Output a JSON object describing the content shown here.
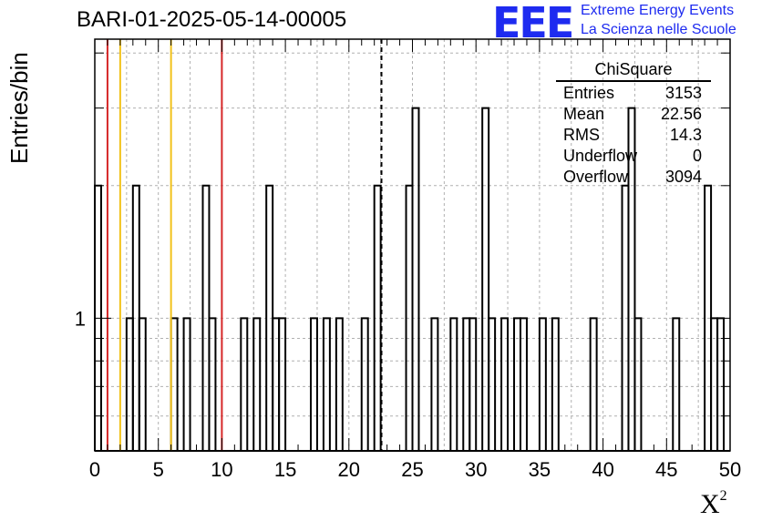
{
  "title": "BARI-01-2025-05-14-00005",
  "logo": {
    "mark": "EEE",
    "line1": "Extreme Energy Events",
    "line2": "La Scienza nelle Scuole"
  },
  "stats": {
    "title": "ChiSquare",
    "rows": [
      {
        "label": "Entries",
        "value": "3153"
      },
      {
        "label": "Mean",
        "value": "22.56"
      },
      {
        "label": "RMS",
        "value": "14.3"
      },
      {
        "label": "Underflow",
        "value": "0"
      },
      {
        "label": "Overflow",
        "value": "3094"
      }
    ]
  },
  "colors": {
    "red_line": "#d62728",
    "yellow_line": "#f2c21b",
    "grid": "#b0b0b0",
    "logo": "#1e2bf0"
  },
  "chart_data": {
    "type": "bar",
    "xlabel": "X²",
    "ylabel": "Entries/bin",
    "xlim": [
      0,
      50
    ],
    "ylim": [
      0.5,
      4.3
    ],
    "yscale": "log",
    "grid": true,
    "legend_position": "top-right",
    "x_ticks": [
      "0",
      "5",
      "10",
      "15",
      "20",
      "25",
      "30",
      "35",
      "40",
      "45",
      "50"
    ],
    "y_ticks": [
      "1"
    ],
    "bin_width": 0.5,
    "bins": [
      [
        0,
        2
      ],
      [
        2.5,
        1
      ],
      [
        3,
        2
      ],
      [
        3.5,
        1
      ],
      [
        6,
        1
      ],
      [
        7,
        1
      ],
      [
        8.5,
        2
      ],
      [
        9,
        1
      ],
      [
        11.5,
        1
      ],
      [
        12.5,
        1
      ],
      [
        13.5,
        2
      ],
      [
        14,
        1
      ],
      [
        14.5,
        1
      ],
      [
        17,
        1
      ],
      [
        18,
        1
      ],
      [
        19,
        1
      ],
      [
        21,
        1
      ],
      [
        22,
        2
      ],
      [
        24.5,
        2
      ],
      [
        25,
        3
      ],
      [
        26.5,
        1
      ],
      [
        28,
        1
      ],
      [
        29,
        1
      ],
      [
        29.5,
        1
      ],
      [
        30.5,
        3
      ],
      [
        31,
        1
      ],
      [
        32,
        1
      ],
      [
        33,
        1
      ],
      [
        33.5,
        1
      ],
      [
        35,
        1
      ],
      [
        36,
        1
      ],
      [
        39,
        1
      ],
      [
        41.5,
        2
      ],
      [
        42,
        3
      ],
      [
        42.5,
        1
      ],
      [
        45.5,
        1
      ],
      [
        48,
        2
      ],
      [
        48.5,
        1
      ],
      [
        49,
        1
      ]
    ],
    "vertical_lines": [
      {
        "x": 1,
        "color": "#d62728",
        "style": "solid"
      },
      {
        "x": 2,
        "color": "#f2c21b",
        "style": "solid"
      },
      {
        "x": 6,
        "color": "#f2c21b",
        "style": "solid"
      },
      {
        "x": 10,
        "color": "#d62728",
        "style": "solid"
      },
      {
        "x": 22.56,
        "color": "#000000",
        "style": "dashed"
      }
    ]
  }
}
